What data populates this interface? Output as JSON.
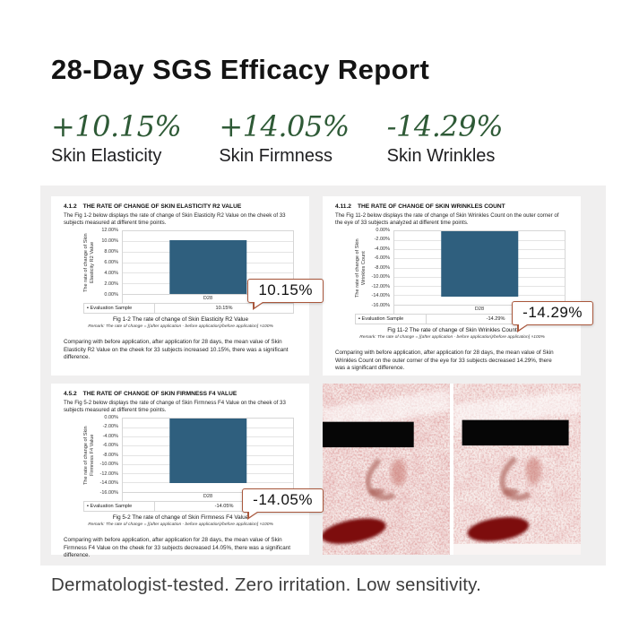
{
  "page": {
    "title": "28-Day SGS Efficacy Report",
    "footer": "Dermatologist-tested. Zero irritation. Low sensitivity."
  },
  "stats": [
    {
      "value": "+10.15%",
      "label": "Skin Elasticity"
    },
    {
      "value": "+14.05%",
      "label": "Skin Firmness"
    },
    {
      "value": "-14.29%",
      "label": "Skin Wrinkles"
    }
  ],
  "colors": {
    "accent_green": "#2E5A36",
    "bar": "#2F5F7E",
    "callout_border": "#A9573C",
    "panel_background": "#F0EFEF"
  },
  "legend_marker": "▪",
  "chart_data": [
    {
      "type": "bar",
      "section": "4.1.2",
      "heading": "THE RATE OF CHANGE OF SKIN ELASTICITY R2 VALUE",
      "intro": "The Fig 1-2 below displays the rate of change of Skin Elasticity R2 Value on the cheek of 33 subjects measured at different time points.",
      "ylabel": "The rate of change of Skin Elasticity R2 Value",
      "categories": [
        "D28"
      ],
      "values": [
        10.15
      ],
      "ylim": [
        0,
        12
      ],
      "tick_step": 2,
      "legend": "Evaluation Sample",
      "legend_value": "10.15%",
      "callout": "10.15%",
      "caption": "Fig 1-2 The rate of change of Skin Elasticity R2 Value",
      "remark": "Remark: The rate of change = [(after application - before application)/before application] ×100%",
      "analysis": "Comparing with before application, after application for 28 days, the mean value of Skin Elasticity R2 Value on the cheek for 33 subjects increased 10.15%, there was a significant difference."
    },
    {
      "type": "bar",
      "section": "4.11.2",
      "heading": "THE RATE OF CHANGE OF SKIN WRINKLES COUNT",
      "intro": "The Fig 11-2 below displays the rate of change of Skin Wrinkles Count on the outer corner of the eye of 33 subjects analyzed at different time points.",
      "ylabel": "The rate of change of Skin Wrinkles Count",
      "categories": [
        "D28"
      ],
      "values": [
        -14.29
      ],
      "ylim": [
        -16,
        0
      ],
      "tick_step": 2,
      "legend": "Evaluation Sample",
      "legend_value": "-14.29%",
      "callout": "-14.29%",
      "caption": "Fig 11-2 The rate of change of Skin Wrinkles Count",
      "remark": "Remark: The rate of change = [(after application - before application)/before application] ×100%",
      "analysis": "Comparing with before application, after application for 28 days, the mean value of Skin Wrinkles Count on the outer corner of the eye for 33 subjects decreased 14.29%, there was a significant difference."
    },
    {
      "type": "bar",
      "section": "4.5.2",
      "heading": "THE RATE OF CHANGE OF SKIN FIRMNESS F4 VALUE",
      "intro": "The Fig 5-2 below displays the rate of change of Skin Firmness F4 Value on the cheek of 33 subjects measured at different time points.",
      "ylabel": "The rate of change of Skin Firmness F4 Value",
      "categories": [
        "D28"
      ],
      "values": [
        -14.05
      ],
      "ylim": [
        -16,
        0
      ],
      "tick_step": 2,
      "legend": "Evaluation Sample",
      "legend_value": "-14.05%",
      "callout": "-14.05%",
      "caption": "Fig 5-2 The rate of change of Skin Firmness F4 Value",
      "remark": "Remark: The rate of change = [(after application - before application)/before application] ×100%",
      "analysis": "Comparing with before application, after application for 28 days, the mean value of Skin Firmness F4 Value on the cheek for 33 subjects decreased 14.05%, there was a significant difference."
    }
  ]
}
